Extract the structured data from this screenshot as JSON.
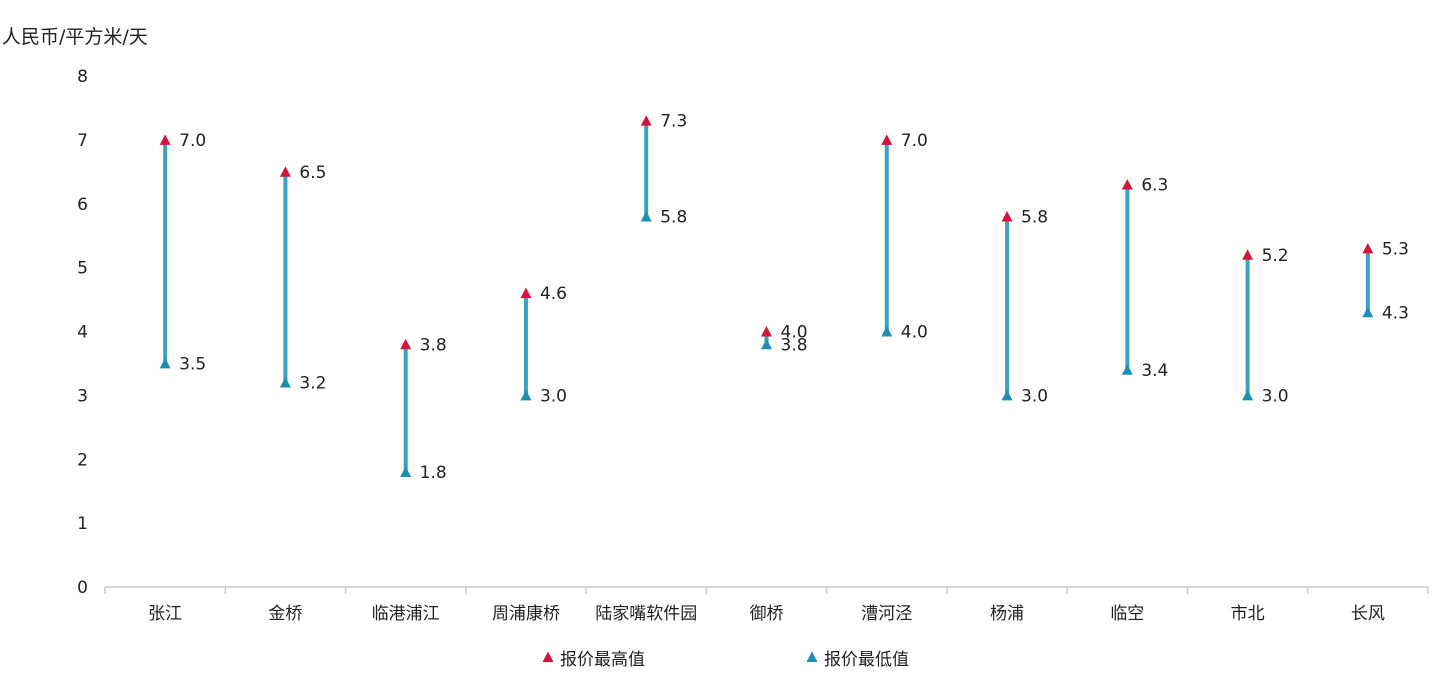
{
  "chart_data": {
    "type": "range",
    "ylabel": "人民币/平方米/天",
    "ylim": [
      0,
      8
    ],
    "yticks": [
      "0",
      "1",
      "2",
      "3",
      "4",
      "5",
      "6",
      "7",
      "8"
    ],
    "grid": false,
    "legend_position": "bottom",
    "categories": [
      "张江",
      "金桥",
      "临港浦江",
      "周浦康桥",
      "陆家嘴软件园",
      "御桥",
      "漕河泾",
      "杨浦",
      "临空",
      "市北",
      "长风"
    ],
    "series": [
      {
        "name": "报价最高值",
        "values": [
          7.0,
          6.5,
          3.8,
          4.6,
          7.3,
          4.0,
          7.0,
          5.8,
          6.3,
          5.2,
          5.3
        ]
      },
      {
        "name": "报价最低值",
        "values": [
          3.5,
          3.2,
          1.8,
          3.0,
          5.8,
          3.8,
          4.0,
          3.0,
          3.4,
          3.0,
          4.3
        ]
      }
    ],
    "colors": {
      "high": "#d6133a",
      "low": "#1f8fb0",
      "range": "#3aa3c4",
      "axis": "#cccccc",
      "text": "#222222"
    }
  }
}
